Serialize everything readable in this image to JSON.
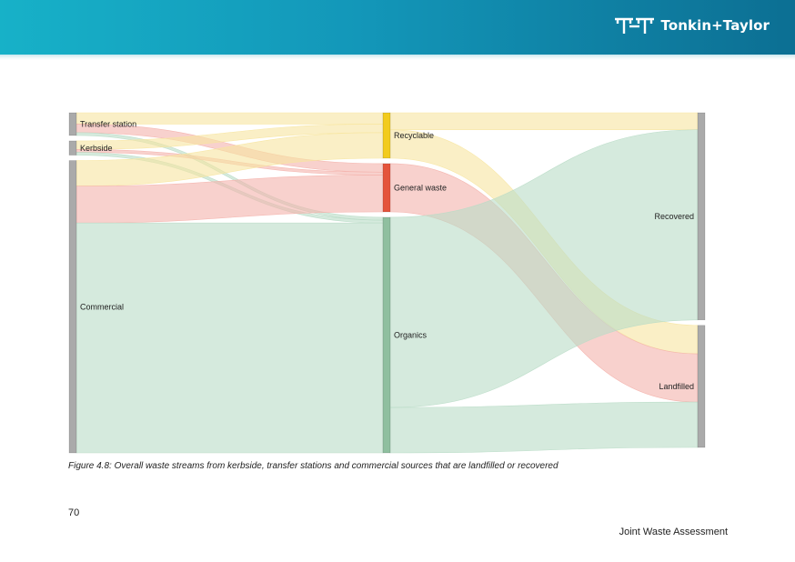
{
  "brand": {
    "name": "Tonkin+Taylor"
  },
  "figure": {
    "caption": "Figure 4.8: Overall waste streams from kerbside, transfer stations and commercial sources that are landfilled or recovered"
  },
  "page": {
    "number": "70",
    "footer": "Joint Waste Assessment"
  },
  "colors": {
    "header_start": "#17b1c8",
    "header_end": "#0c6f93",
    "source_node": "#aaaaaa",
    "recyclable": "#f2cb1d",
    "general_waste": "#e4533b",
    "organics": "#8fbf9f",
    "recyclable_flow": "#f7e5a0",
    "general_waste_flow": "#f4b3ac",
    "organics_flow": "#b9dcc7"
  },
  "chart_data": {
    "type": "sankey",
    "nodes": [
      {
        "id": "transfer",
        "label": "Transfer station",
        "column": 0
      },
      {
        "id": "kerbside",
        "label": "Kerbside",
        "column": 0
      },
      {
        "id": "commercial",
        "label": "Commercial",
        "column": 0
      },
      {
        "id": "recyclable",
        "label": "Recyclable",
        "column": 1
      },
      {
        "id": "general",
        "label": "General waste",
        "column": 1
      },
      {
        "id": "organics",
        "label": "Organics",
        "column": 1
      },
      {
        "id": "recovered",
        "label": "Recovered",
        "column": 2
      },
      {
        "id": "landfilled",
        "label": "Landfilled",
        "column": 2
      }
    ],
    "links": [
      {
        "source": "transfer",
        "target": "recyclable",
        "value": 4
      },
      {
        "source": "transfer",
        "target": "general",
        "value": 3
      },
      {
        "source": "transfer",
        "target": "organics",
        "value": 1
      },
      {
        "source": "kerbside",
        "target": "recyclable",
        "value": 3
      },
      {
        "source": "kerbside",
        "target": "general",
        "value": 1
      },
      {
        "source": "kerbside",
        "target": "organics",
        "value": 1
      },
      {
        "source": "commercial",
        "target": "recyclable",
        "value": 9
      },
      {
        "source": "commercial",
        "target": "general",
        "value": 13
      },
      {
        "source": "commercial",
        "target": "organics",
        "value": 81
      },
      {
        "source": "recyclable",
        "target": "recovered",
        "value": 6
      },
      {
        "source": "recyclable",
        "target": "landfilled",
        "value": 10
      },
      {
        "source": "general",
        "target": "landfilled",
        "value": 17
      },
      {
        "source": "organics",
        "target": "recovered",
        "value": 67
      },
      {
        "source": "organics",
        "target": "landfilled",
        "value": 16
      }
    ]
  }
}
